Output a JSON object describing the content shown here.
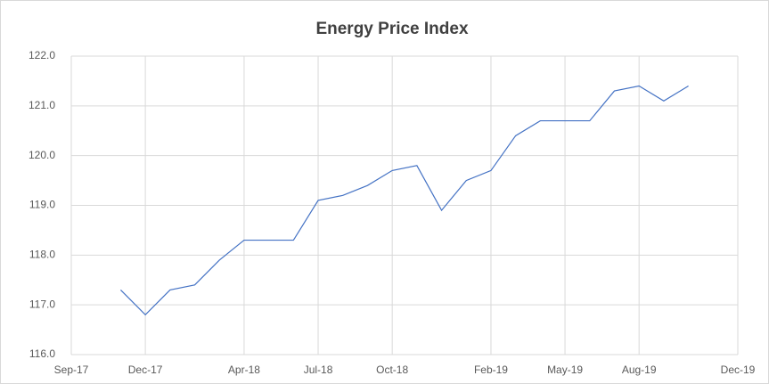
{
  "chart_data": {
    "type": "line",
    "title": "Energy Price Index",
    "x": [
      "2017-11",
      "2017-12",
      "2018-01",
      "2018-02",
      "2018-03",
      "2018-04",
      "2018-05",
      "2018-06",
      "2018-07",
      "2018-08",
      "2018-09",
      "2018-10",
      "2018-11",
      "2018-12",
      "2019-01",
      "2019-02",
      "2019-03",
      "2019-04",
      "2019-05",
      "2019-06",
      "2019-07",
      "2019-08",
      "2019-09",
      "2019-10"
    ],
    "series": [
      {
        "name": "Energy Price Index",
        "color": "#4472c4",
        "values": [
          117.3,
          116.8,
          117.3,
          117.4,
          117.9,
          118.3,
          118.3,
          118.3,
          119.1,
          119.2,
          119.4,
          119.7,
          119.8,
          118.9,
          119.5,
          119.7,
          120.4,
          120.7,
          120.7,
          120.7,
          121.3,
          121.4,
          121.1,
          121.4
        ]
      }
    ],
    "xlim": [
      "2017-09",
      "2019-12"
    ],
    "xticks": [
      {
        "value": "2017-09",
        "label": "Sep-17"
      },
      {
        "value": "2017-12",
        "label": "Dec-17"
      },
      {
        "value": "2018-04",
        "label": "Apr-18"
      },
      {
        "value": "2018-07",
        "label": "Jul-18"
      },
      {
        "value": "2018-10",
        "label": "Oct-18"
      },
      {
        "value": "2019-02",
        "label": "Feb-19"
      },
      {
        "value": "2019-05",
        "label": "May-19"
      },
      {
        "value": "2019-08",
        "label": "Aug-19"
      },
      {
        "value": "2019-12",
        "label": "Dec-19"
      }
    ],
    "ylim": [
      116,
      122
    ],
    "yticks": [
      {
        "value": 116,
        "label": "116.0"
      },
      {
        "value": 117,
        "label": "117.0"
      },
      {
        "value": 118,
        "label": "118.0"
      },
      {
        "value": 119,
        "label": "119.0"
      },
      {
        "value": 120,
        "label": "120.0"
      },
      {
        "value": 121,
        "label": "121.0"
      },
      {
        "value": 122,
        "label": "122.0"
      }
    ],
    "grid": true
  }
}
